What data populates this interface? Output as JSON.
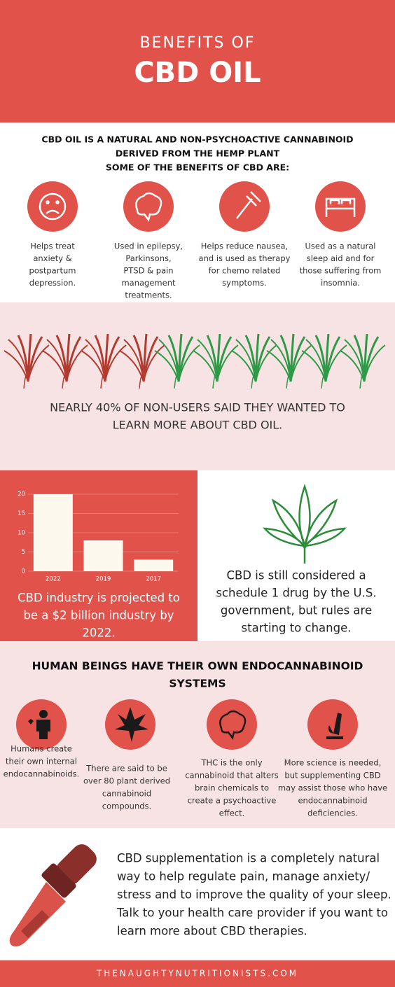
{
  "header": {
    "subtitle": "BENEFITS OF",
    "title": "CBD OIL"
  },
  "intro": {
    "lines": [
      "CBD OIL IS A NATURAL AND NON-PSYCHOACTIVE CANNABINOID",
      "DERIVED FROM THE HEMP PLANT",
      "SOME OF THE BENEFITS OF CBD ARE:"
    ]
  },
  "benefits": [
    {
      "lines": [
        "Helps treat",
        "anxiety &",
        "postpartum",
        "depression."
      ]
    },
    {
      "lines": [
        "Used in epilepsy,",
        "Parkinsons,",
        "PTSD & pain",
        "management",
        "treatments."
      ]
    },
    {
      "lines": [
        "Helps reduce nausea,",
        "and is used as therapy",
        "for chemo related",
        "symptoms."
      ]
    },
    {
      "lines": [
        "Used as a natural",
        "sleep aid and for",
        "those suffering from",
        "insomnia."
      ]
    }
  ],
  "stat": {
    "lines": [
      "NEARLY 40% OF NON-USERS SAID THEY WANTED TO",
      "LEARN MORE ABOUT CBD OIL."
    ]
  },
  "chart_data": {
    "type": "bar",
    "categories": [
      "2022",
      "2019",
      "2017"
    ],
    "values": [
      20,
      8,
      3
    ],
    "color": "#fdf8ee",
    "ylim": [
      0,
      20
    ],
    "yticks": [
      0,
      5,
      10,
      15,
      20
    ],
    "grid": true
  },
  "projection": {
    "lines": [
      "CBD industry is projected to",
      "be a $2 billion industry by",
      "2022."
    ]
  },
  "schedule": {
    "lines": [
      "CBD is still considered a",
      "schedule 1 drug by the U.S.",
      "government, but rules are",
      "starting to change."
    ]
  },
  "systems": {
    "title": [
      "HUMAN BEINGS HAVE THEIR OWN ENDOCANNABINOID",
      "SYSTEMS"
    ],
    "items": [
      {
        "lines": [
          "Humans create",
          "their own internal",
          "endocannabinoids."
        ]
      },
      {
        "lines": [
          "There are said to be",
          "over 80 plant derived",
          "cannabinoid",
          "compounds."
        ]
      },
      {
        "lines": [
          "THC is the only",
          "cannabinoid that alters",
          "brain chemicals to",
          "create a psychoactive",
          "effect."
        ]
      },
      {
        "lines": [
          "More science is needed,",
          "but supplementing CBD",
          "may assist those who have",
          "endocannabinoid",
          "deficiencies."
        ]
      }
    ]
  },
  "closing": {
    "lines": [
      "CBD supplementation is a completely natural",
      "way to help regulate pain, manage anxiety/",
      "stress and to improve the quality of your sleep.",
      "Talk to your health care provider if you want to",
      "learn more about CBD therapies."
    ]
  },
  "footer": "THENAUGHTYNUTRITIONISTS.COM"
}
